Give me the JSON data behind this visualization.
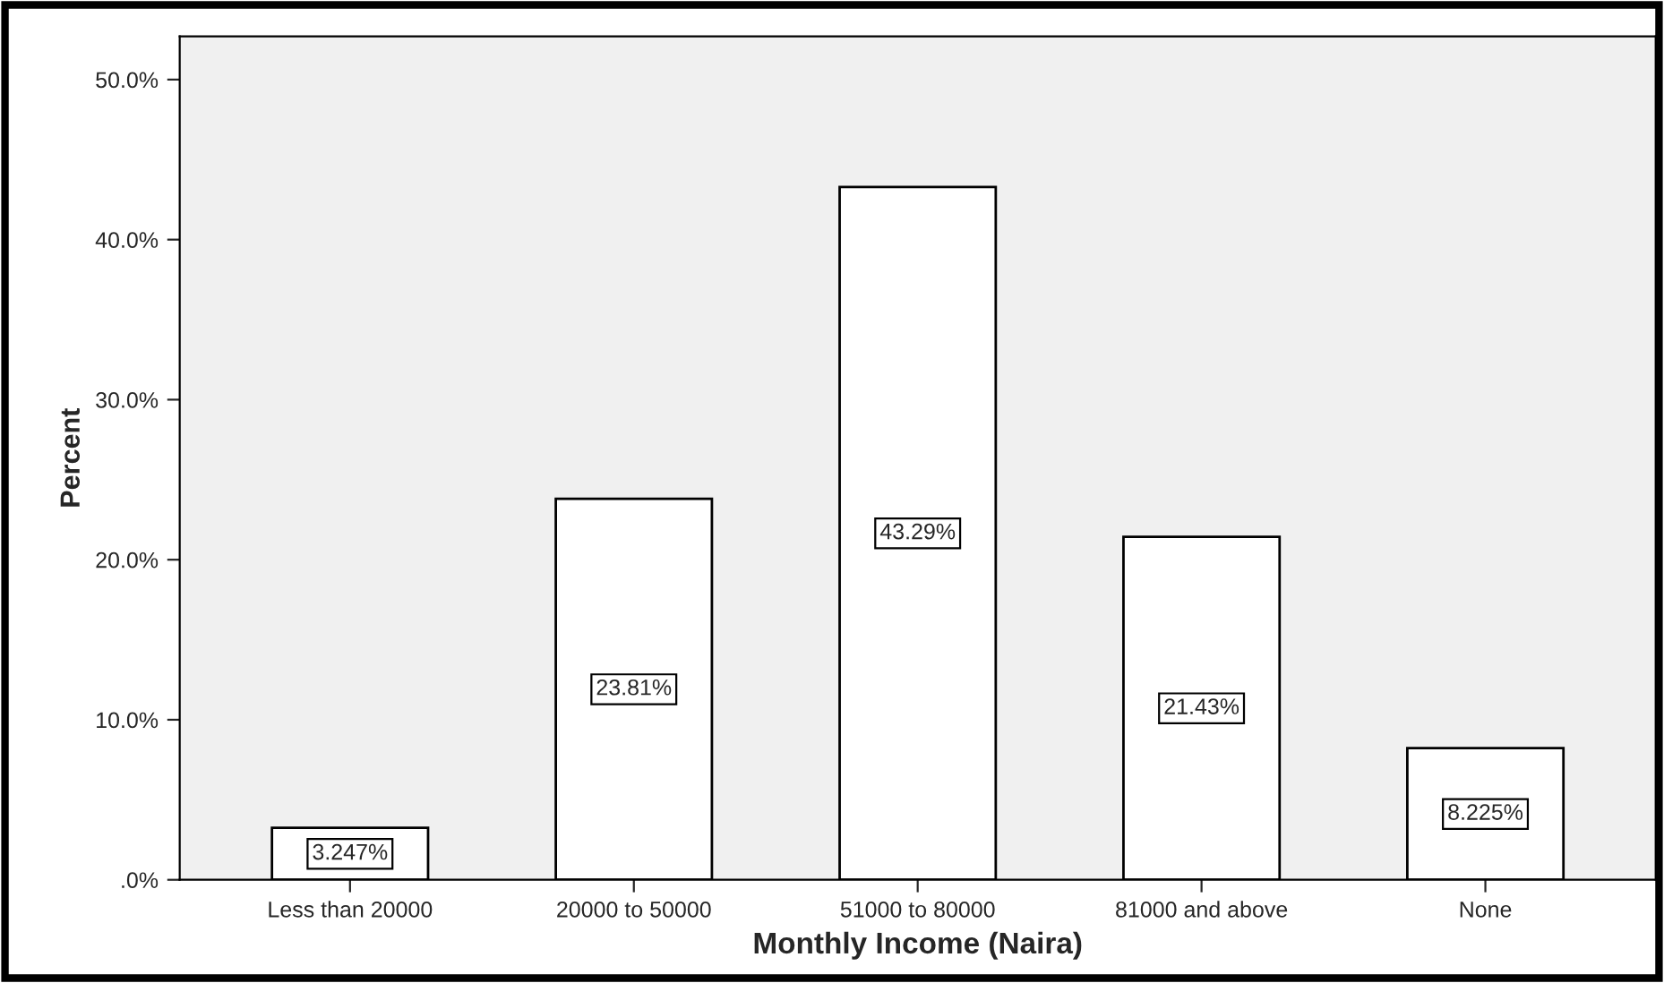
{
  "chart_data": {
    "type": "bar",
    "xlabel": "Monthly Income (Naira)",
    "ylabel": "Percent",
    "categories": [
      "Less than 20000",
      "20000 to 50000",
      "51000 to 80000",
      "81000 and above",
      "None"
    ],
    "values": [
      3.247,
      23.81,
      43.29,
      21.43,
      8.225
    ],
    "value_labels": [
      "3.247%",
      "23.81%",
      "43.29%",
      "21.43%",
      "8.225%"
    ],
    "color": "#ffffff",
    "ylim": [
      0,
      52.7
    ],
    "yticks": [
      {
        "value": 0,
        "label": ".0%"
      },
      {
        "value": 10,
        "label": "10.0%"
      },
      {
        "value": 20,
        "label": "20.0%"
      },
      {
        "value": 30,
        "label": "30.0%"
      },
      {
        "value": 40,
        "label": "40.0%"
      },
      {
        "value": 50,
        "label": "50.0%"
      }
    ],
    "grid": false,
    "legend": false
  }
}
